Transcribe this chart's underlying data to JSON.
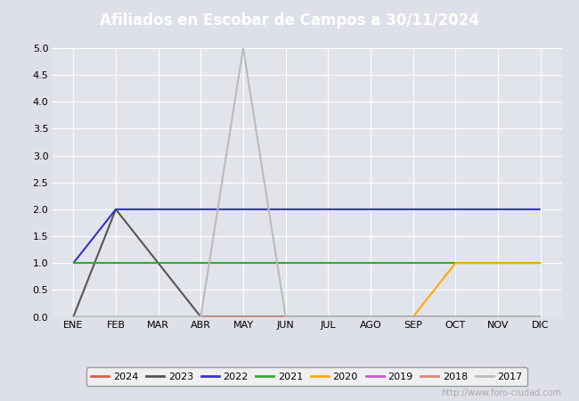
{
  "title": "Afiliados en Escobar de Campos a 30/11/2024",
  "title_color": "#ffffff",
  "title_bg_color": "#4a6fa5",
  "ylim": [
    0.0,
    5.0
  ],
  "yticks": [
    0.0,
    0.5,
    1.0,
    1.5,
    2.0,
    2.5,
    3.0,
    3.5,
    4.0,
    4.5,
    5.0
  ],
  "months": [
    "ENE",
    "FEB",
    "MAR",
    "ABR",
    "MAY",
    "JUN",
    "JUL",
    "AGO",
    "SEP",
    "OCT",
    "NOV",
    "DIC"
  ],
  "watermark": "http://www.foro-ciudad.com",
  "series": {
    "2024": {
      "color": "#e05a52",
      "data": [
        0,
        0,
        0,
        0,
        0,
        0,
        0,
        0,
        0,
        0,
        0,
        null
      ]
    },
    "2023": {
      "color": "#555555",
      "data": [
        0,
        2,
        1,
        0,
        0,
        0,
        0,
        0,
        0,
        0,
        0,
        0
      ]
    },
    "2022": {
      "color": "#3333cc",
      "data": [
        1,
        2,
        2,
        2,
        2,
        2,
        2,
        2,
        2,
        2,
        2,
        2
      ]
    },
    "2021": {
      "color": "#33aa33",
      "data": [
        1,
        1,
        1,
        1,
        1,
        1,
        1,
        1,
        1,
        1,
        1,
        1
      ]
    },
    "2020": {
      "color": "#ffaa00",
      "data": [
        null,
        null,
        null,
        null,
        null,
        null,
        null,
        null,
        0,
        1,
        1,
        1
      ]
    },
    "2019": {
      "color": "#cc55cc",
      "data": [
        0,
        0,
        0,
        0,
        0,
        0,
        0,
        0,
        0,
        0,
        0,
        0
      ]
    },
    "2018": {
      "color": "#dd8877",
      "data": [
        0,
        0,
        0,
        0,
        0,
        0,
        0,
        0,
        0,
        0,
        0,
        0
      ]
    },
    "2017": {
      "color": "#bbbbbb",
      "data": [
        0,
        0,
        0,
        0,
        5,
        0,
        0,
        0,
        0,
        0,
        0,
        0
      ]
    }
  },
  "legend_order": [
    "2024",
    "2023",
    "2022",
    "2021",
    "2020",
    "2019",
    "2018",
    "2017"
  ],
  "outer_bg_color": "#dde0e8",
  "plot_bg_color": "#e2e4eb",
  "grid_color": "#ffffff",
  "watermark_color": "#aaaaaa",
  "tick_fontsize": 8,
  "title_fontsize": 12
}
